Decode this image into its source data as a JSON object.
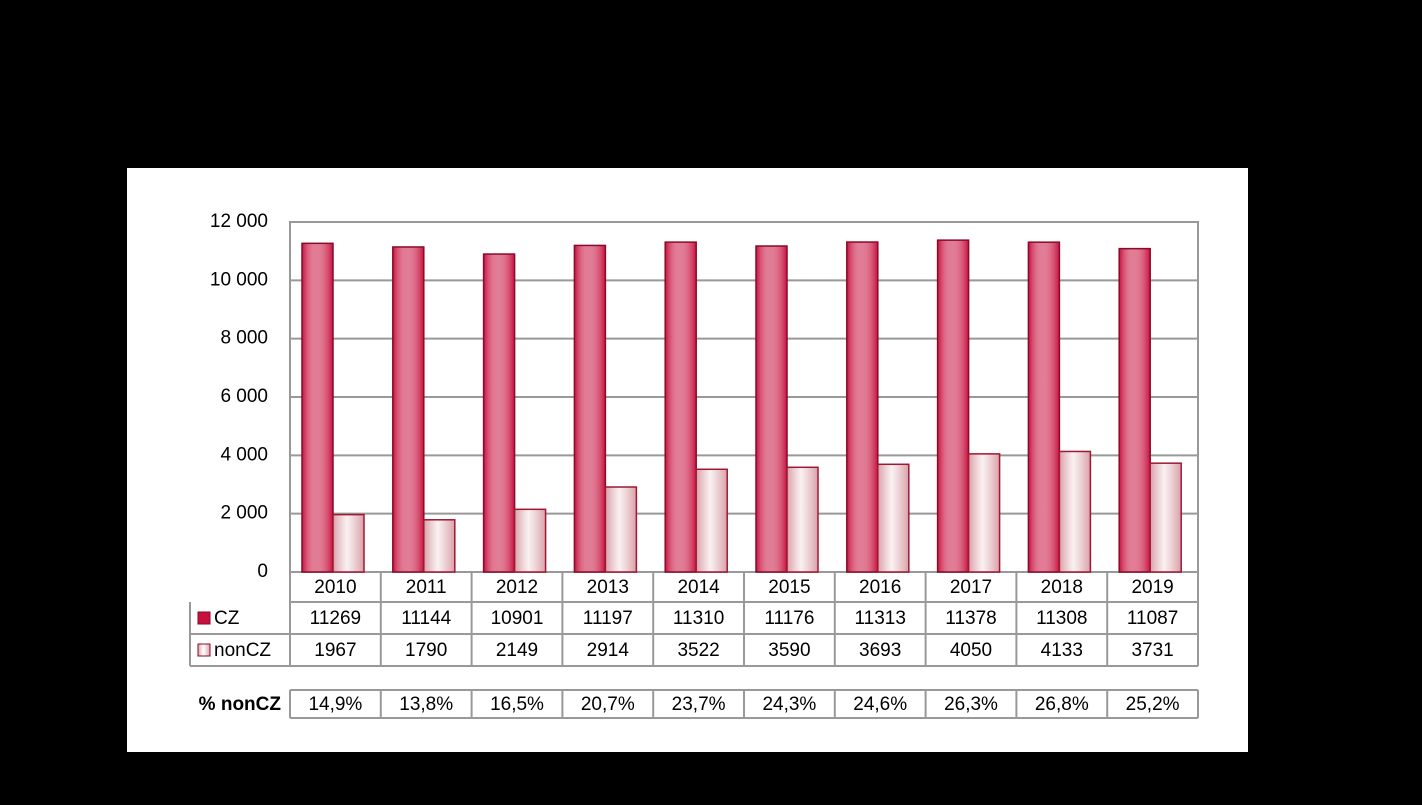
{
  "chart_data": {
    "type": "bar",
    "categories": [
      "2010",
      "2011",
      "2012",
      "2013",
      "2014",
      "2015",
      "2016",
      "2017",
      "2018",
      "2019"
    ],
    "series": [
      {
        "name": "CZ",
        "color": "#c8103e",
        "values": [
          11269,
          11144,
          10901,
          11197,
          11310,
          11176,
          11313,
          11378,
          11308,
          11087
        ]
      },
      {
        "name": "nonCZ",
        "color": "#d9a0a8",
        "values": [
          1967,
          1790,
          2149,
          2914,
          3522,
          3590,
          3693,
          4050,
          4133,
          3731
        ]
      }
    ],
    "ylim": [
      0,
      12000
    ],
    "yticks": [
      0,
      {
        "value": 2000,
        "label": "2 000"
      },
      {
        "value": 4000,
        "label": "4 000"
      },
      {
        "value": 6000,
        "label": "6 000"
      },
      {
        "value": 8000,
        "label": "8 000"
      },
      {
        "value": 10000,
        "label": "10 000"
      },
      {
        "value": 12000,
        "label": "12 000"
      }
    ],
    "grid": true,
    "percent_row": {
      "label": "% nonCZ",
      "values": [
        14.9,
        13.8,
        16.5,
        20.7,
        23.7,
        24.3,
        24.6,
        26.3,
        26.8,
        25.2
      ],
      "value_labels": [
        "14,9%",
        "13,8%",
        "16,5%",
        "20,7%",
        "23,7%",
        "24,3%",
        "24,6%",
        "26,3%",
        "26,8%",
        "25,2%"
      ]
    }
  }
}
